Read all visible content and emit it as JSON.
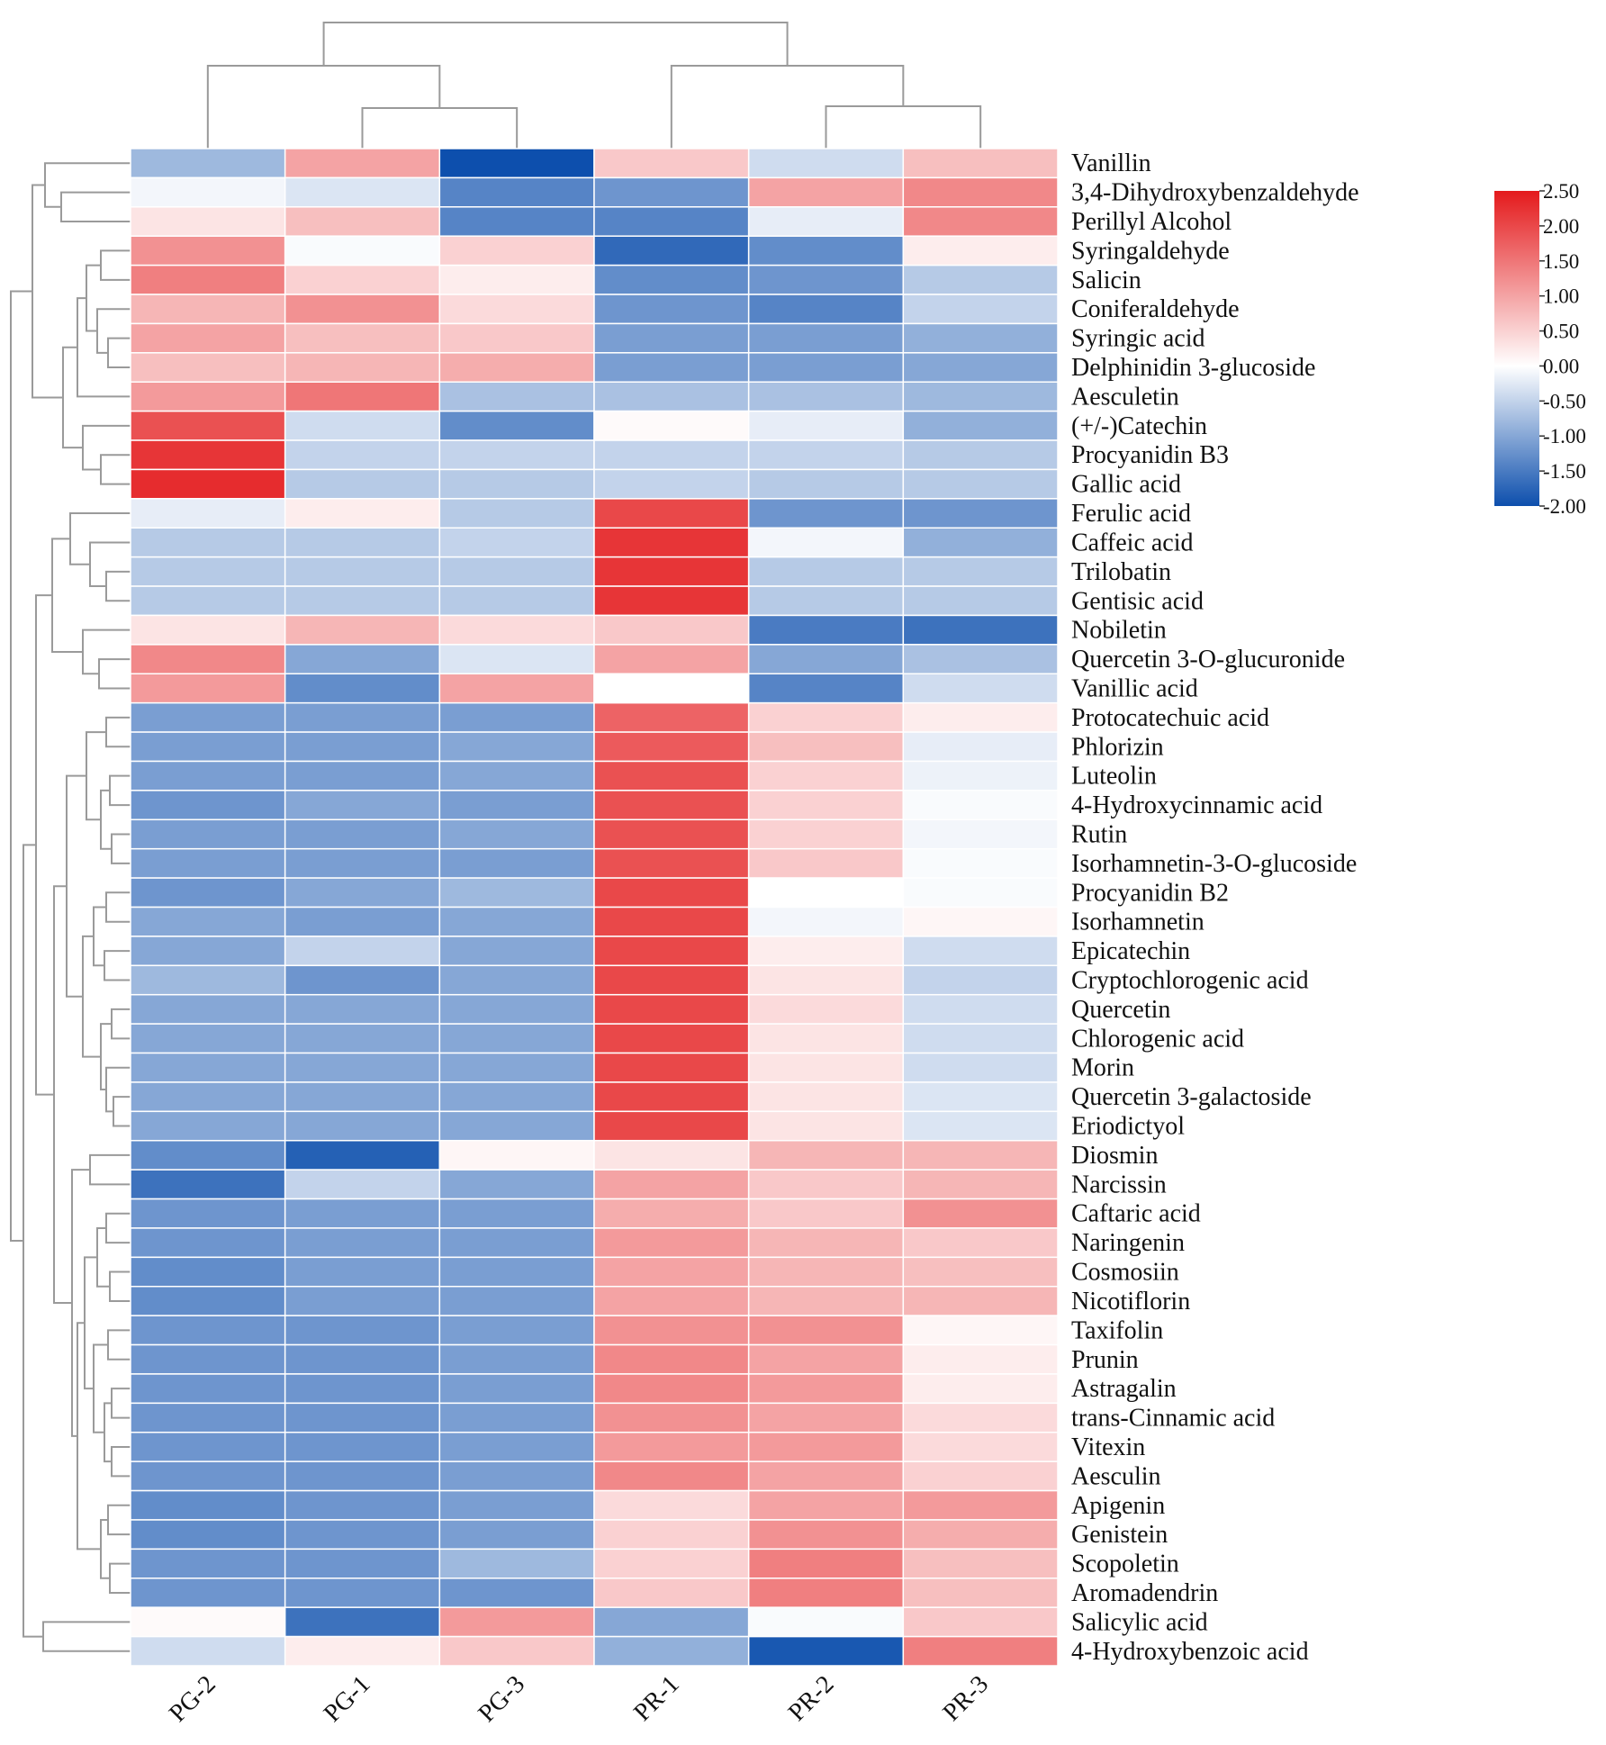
{
  "chart_data": {
    "type": "heatmap",
    "title": "",
    "xlabel": "",
    "ylabel": "",
    "columns": [
      "PG-2",
      "PG-1",
      "PG-3",
      "PR-1",
      "PR-2",
      "PR-3"
    ],
    "rows": [
      "Vanillin",
      "3,4-Dihydroxybenzaldehyde",
      "Perillyl Alcohol",
      "Syringaldehyde",
      "Salicin",
      "Coniferaldehyde",
      "Syringic acid",
      "Delphinidin 3-glucoside",
      "Aesculetin",
      "(+/-)Catechin",
      "Procyanidin B3",
      "Gallic acid",
      "Ferulic acid",
      "Caffeic acid",
      "Trilobatin",
      "Gentisic acid",
      "Nobiletin",
      "Quercetin 3-O-glucuronide",
      "Vanillic acid",
      "Protocatechuic acid",
      "Phlorizin",
      "Luteolin",
      "4-Hydroxycinnamic acid",
      "Rutin",
      "Isorhamnetin-3-O-glucoside",
      "Procyanidin B2",
      "Isorhamnetin",
      "Epicatechin",
      "Cryptochlorogenic acid",
      "Quercetin",
      "Chlorogenic acid",
      "Morin",
      "Quercetin 3-galactoside",
      "Eriodictyol",
      "Diosmin",
      "Narcissin",
      "Caftaric acid",
      "Naringenin",
      "Cosmosiin",
      "Nicotiflorin",
      "Taxifolin",
      "Prunin",
      "Astragalin",
      "trans-Cinnamic acid",
      "Vitexin",
      "Aesculin",
      "Apigenin",
      "Genistein",
      "Scopoletin",
      "Aromadendrin",
      "Salicylic acid",
      "4-Hydroxybenzoic acid"
    ],
    "values": [
      [
        -0.8,
        1.0,
        -2.0,
        0.6,
        -0.4,
        0.7
      ],
      [
        -0.1,
        -0.3,
        -1.4,
        -1.2,
        1.0,
        1.3
      ],
      [
        0.3,
        0.7,
        -1.4,
        -1.4,
        -0.2,
        1.3
      ],
      [
        1.2,
        -0.05,
        0.5,
        -1.7,
        -1.3,
        0.2
      ],
      [
        1.4,
        0.5,
        0.2,
        -1.3,
        -1.2,
        -0.6
      ],
      [
        0.8,
        1.2,
        0.4,
        -1.2,
        -1.4,
        -0.5
      ],
      [
        1.0,
        0.7,
        0.6,
        -1.1,
        -1.1,
        -0.9
      ],
      [
        0.7,
        0.8,
        0.9,
        -1.1,
        -1.1,
        -1.0
      ],
      [
        1.1,
        1.5,
        -0.7,
        -0.7,
        -0.7,
        -0.8
      ],
      [
        1.9,
        -0.4,
        -1.3,
        0.05,
        -0.2,
        -0.9
      ],
      [
        2.2,
        -0.5,
        -0.5,
        -0.5,
        -0.5,
        -0.6
      ],
      [
        2.3,
        -0.6,
        -0.6,
        -0.5,
        -0.6,
        -0.6
      ],
      [
        -0.2,
        0.2,
        -0.6,
        2.0,
        -1.2,
        -1.2
      ],
      [
        -0.6,
        -0.6,
        -0.5,
        2.2,
        -0.1,
        -0.9
      ],
      [
        -0.6,
        -0.6,
        -0.6,
        2.2,
        -0.6,
        -0.6
      ],
      [
        -0.6,
        -0.6,
        -0.6,
        2.2,
        -0.6,
        -0.6
      ],
      [
        0.3,
        0.8,
        0.4,
        0.6,
        -1.5,
        -1.6
      ],
      [
        1.3,
        -1.0,
        -0.3,
        1.0,
        -1.0,
        -0.7
      ],
      [
        1.1,
        -1.3,
        1.0,
        0.0,
        -1.4,
        -0.4
      ],
      [
        -1.1,
        -1.1,
        -1.1,
        1.7,
        0.5,
        0.2
      ],
      [
        -1.1,
        -1.1,
        -1.0,
        1.8,
        0.7,
        -0.2
      ],
      [
        -1.1,
        -1.1,
        -1.0,
        1.9,
        0.5,
        -0.15
      ],
      [
        -1.2,
        -1.0,
        -1.1,
        1.9,
        0.5,
        -0.05
      ],
      [
        -1.1,
        -1.1,
        -1.0,
        1.9,
        0.5,
        -0.1
      ],
      [
        -1.1,
        -1.1,
        -1.1,
        1.9,
        0.6,
        -0.05
      ],
      [
        -1.2,
        -1.0,
        -0.8,
        2.0,
        0.0,
        -0.05
      ],
      [
        -1.0,
        -1.1,
        -1.0,
        2.0,
        -0.1,
        0.1
      ],
      [
        -1.0,
        -0.5,
        -1.0,
        2.0,
        0.2,
        -0.4
      ],
      [
        -0.8,
        -1.2,
        -1.0,
        2.0,
        0.3,
        -0.5
      ],
      [
        -1.0,
        -1.0,
        -1.0,
        2.0,
        0.4,
        -0.4
      ],
      [
        -1.0,
        -1.0,
        -1.0,
        2.0,
        0.3,
        -0.4
      ],
      [
        -1.0,
        -1.0,
        -1.0,
        2.0,
        0.3,
        -0.4
      ],
      [
        -1.0,
        -1.0,
        -1.0,
        2.0,
        0.3,
        -0.3
      ],
      [
        -1.0,
        -1.0,
        -1.0,
        2.0,
        0.3,
        -0.3
      ],
      [
        -1.3,
        -1.8,
        0.1,
        0.3,
        0.8,
        0.8
      ],
      [
        -1.6,
        -0.5,
        -1.0,
        1.0,
        0.6,
        0.8
      ],
      [
        -1.2,
        -1.1,
        -1.1,
        0.9,
        0.6,
        1.2
      ],
      [
        -1.2,
        -1.1,
        -1.1,
        1.1,
        0.8,
        0.6
      ],
      [
        -1.3,
        -1.1,
        -1.1,
        1.0,
        0.8,
        0.7
      ],
      [
        -1.3,
        -1.1,
        -1.1,
        1.0,
        0.8,
        0.8
      ],
      [
        -1.2,
        -1.2,
        -1.1,
        1.2,
        1.2,
        0.1
      ],
      [
        -1.2,
        -1.2,
        -1.1,
        1.3,
        1.0,
        0.2
      ],
      [
        -1.2,
        -1.2,
        -1.1,
        1.3,
        1.1,
        0.2
      ],
      [
        -1.2,
        -1.2,
        -1.1,
        1.2,
        1.0,
        0.4
      ],
      [
        -1.2,
        -1.2,
        -1.1,
        1.1,
        1.1,
        0.4
      ],
      [
        -1.2,
        -1.2,
        -1.1,
        1.3,
        1.0,
        0.5
      ],
      [
        -1.3,
        -1.2,
        -1.1,
        0.4,
        1.0,
        1.1
      ],
      [
        -1.3,
        -1.2,
        -1.1,
        0.5,
        1.2,
        0.9
      ],
      [
        -1.2,
        -1.2,
        -0.8,
        0.5,
        1.4,
        0.7
      ],
      [
        -1.2,
        -1.2,
        -1.2,
        0.6,
        1.4,
        0.7
      ],
      [
        0.05,
        -1.6,
        1.1,
        -1.0,
        -0.05,
        0.6
      ],
      [
        -0.4,
        0.2,
        0.6,
        -0.9,
        -1.9,
        1.4
      ]
    ],
    "colorbar": {
      "min": -2.0,
      "max": 2.5,
      "ticks": [
        "2.50",
        "2.00",
        "1.50",
        "1.00",
        "0.50",
        "0.00",
        "-0.50",
        "-1.00",
        "-1.50",
        "-2.00"
      ],
      "colors": {
        "low": "#0d4fad",
        "mid": "#ffffff",
        "high": "#e41a1c"
      }
    },
    "legend_position": "top-right",
    "grid": true
  }
}
